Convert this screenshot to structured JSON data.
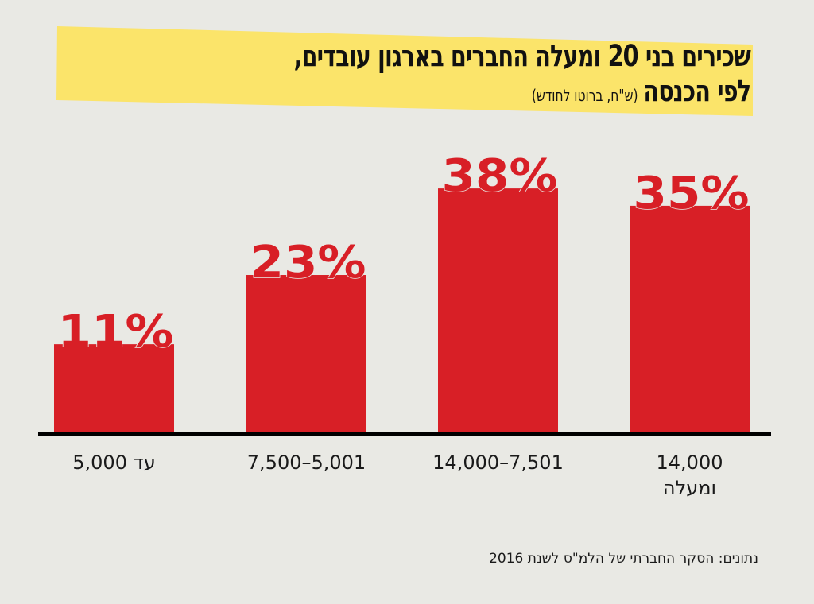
{
  "title": {
    "line1": "שכירים בני 20 ומעלה החברים בארגון עובדים,",
    "line2": "לפי הכנסה",
    "subtitle": "(ש\"ח, ברוטו לחודש)"
  },
  "colors": {
    "background": "#e9e9e4",
    "banner": "#fbe46a",
    "bar": "#d81f26",
    "axis": "#000000",
    "text": "#111111"
  },
  "chart_data": {
    "type": "bar",
    "title": "שכירים בני 20 ומעלה החברים בארגון עובדים, לפי הכנסה (ש\"ח, ברוטו לחודש)",
    "xlabel": "",
    "ylabel": "",
    "categories": [
      "עד 5,000",
      "7,500–5,001",
      "14,000–7,501",
      "14,000 ומעלה"
    ],
    "category_lines": [
      [
        "עד 5,000"
      ],
      [
        "7,500–5,001"
      ],
      [
        "14,000–7,501"
      ],
      [
        "14,000",
        "ומעלה"
      ]
    ],
    "values": [
      11,
      23,
      38,
      35
    ],
    "value_labels": [
      "11%",
      "23%",
      "38%",
      "35%"
    ],
    "unit": "%",
    "ylim": [
      0,
      40
    ],
    "grid": false,
    "legend": "none"
  },
  "source": "נתונים: הסקר החברתי של הלמ\"ס לשנת 2016"
}
